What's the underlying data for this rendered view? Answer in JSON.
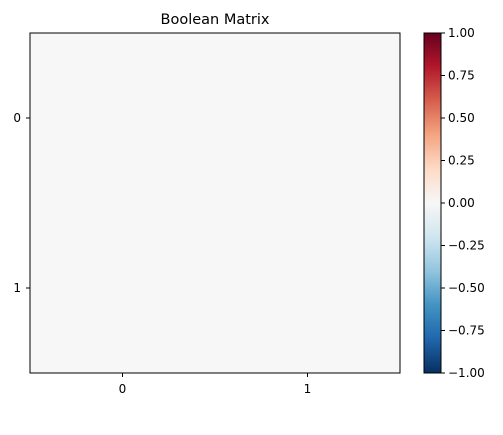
{
  "chart_data": {
    "type": "heatmap",
    "title": "Boolean Matrix",
    "xlabel": "",
    "ylabel": "",
    "x_categories": [
      "0",
      "1"
    ],
    "y_categories": [
      "0",
      "1"
    ],
    "values": [
      [
        0,
        0
      ],
      [
        0,
        0
      ]
    ],
    "colormap": "RdBu_r",
    "vmin": -1,
    "vmax": 1,
    "colorbar": {
      "ticks": [
        1.0,
        0.75,
        0.5,
        0.25,
        0.0,
        -0.25,
        -0.5,
        -0.75,
        -1.0
      ],
      "tick_labels": [
        "1.00",
        "0.75",
        "0.50",
        "0.25",
        "0.00",
        "−0.25",
        "−0.50",
        "−0.75",
        "−1.00"
      ]
    },
    "colors": {
      "cmap_stops": [
        "#053061",
        "#2166ac",
        "#4393c3",
        "#92c5de",
        "#d1e5f0",
        "#f7f7f7",
        "#fddbc7",
        "#f4a582",
        "#d6604d",
        "#b2182b",
        "#67001f"
      ],
      "zero": "#f7f7f7"
    },
    "grid": false,
    "legend": "colorbar-right"
  }
}
